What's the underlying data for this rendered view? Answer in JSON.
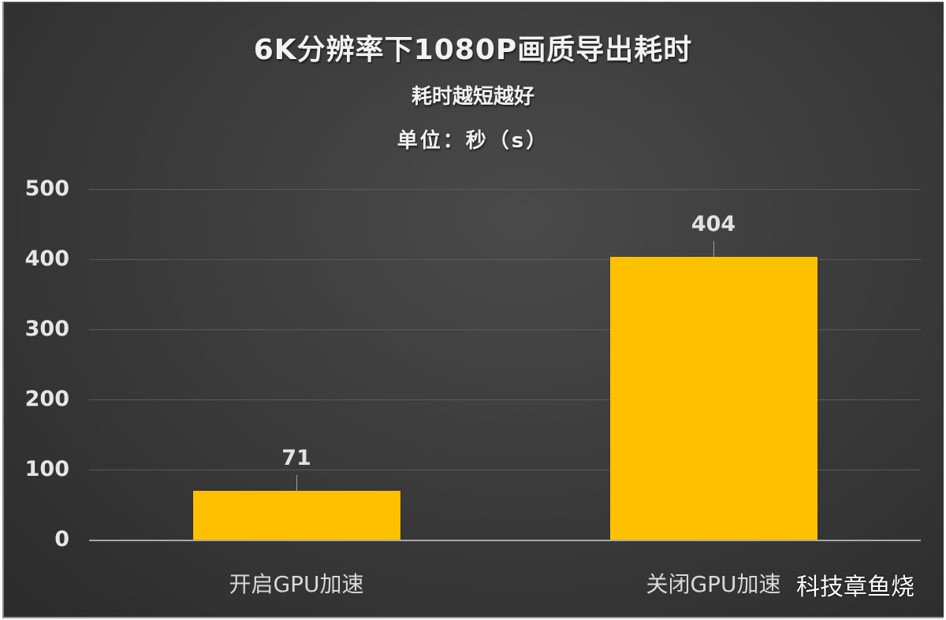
{
  "chart_data": {
    "type": "bar",
    "title": "6K分辨率下1080P画质导出耗时",
    "subtitle": "耗时越短越好",
    "unit_label": "单位：秒（s）",
    "categories": [
      "开启GPU加速",
      "关闭GPU加速"
    ],
    "values": [
      71,
      404
    ],
    "data_labels": [
      "71",
      "404"
    ],
    "xlabel": "",
    "ylabel": "",
    "ylim": [
      0,
      500
    ],
    "yticks": [
      "0",
      "100",
      "200",
      "300",
      "400",
      "500"
    ],
    "grid": true,
    "legend": null,
    "bar_color": "#ffc000",
    "background_color": "#3c3c3c"
  },
  "watermark": "科技章鱼烧"
}
